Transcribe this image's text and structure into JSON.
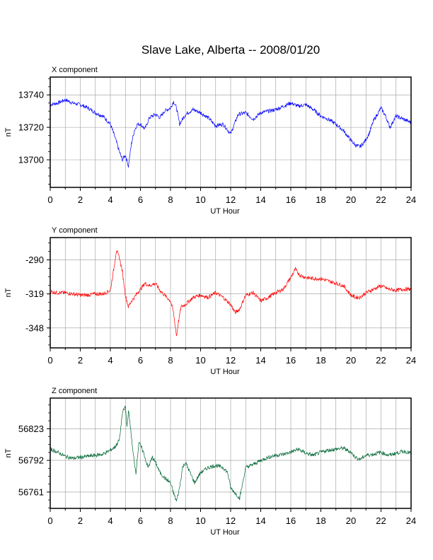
{
  "title": "Slave Lake, Alberta -- 2008/01/20",
  "chart_data": [
    {
      "type": "line",
      "title": "X component",
      "xlabel": "UT Hour",
      "ylabel": "nT",
      "xlim": [
        0,
        24
      ],
      "ylim": [
        13683,
        13751
      ],
      "x_ticks": [
        "0",
        "2",
        "4",
        "6",
        "8",
        "10",
        "12",
        "14",
        "16",
        "18",
        "20",
        "22",
        "24"
      ],
      "y_ticks": [
        13700,
        13720,
        13740
      ],
      "grid": true,
      "color": "#0000ff",
      "series": [
        {
          "x": [
            0,
            0.5,
            1,
            1.5,
            2,
            2.5,
            3,
            3.5,
            4,
            4.3,
            4.6,
            4.8,
            5,
            5.2,
            5.4,
            5.6,
            5.8,
            6,
            6.3,
            6.6,
            7,
            7.3,
            7.6,
            8,
            8.2,
            8.4,
            8.6,
            9,
            9.5,
            10,
            10.5,
            11,
            11.5,
            12,
            12.5,
            13,
            13.5,
            14,
            14.5,
            15,
            15.5,
            16,
            16.5,
            17,
            17.5,
            18,
            18.5,
            19,
            19.5,
            20,
            20.3,
            20.6,
            20.9,
            21.2,
            21.5,
            22,
            22.3,
            22.6,
            23,
            23.5,
            24
          ],
          "values": [
            13734,
            13735,
            13737,
            13735,
            13734,
            13732,
            13729,
            13727,
            13722,
            13714,
            13705,
            13700,
            13703,
            13696,
            13710,
            13718,
            13722,
            13722,
            13719,
            13726,
            13728,
            13726,
            13730,
            13732,
            13736,
            13732,
            13722,
            13728,
            13731,
            13729,
            13726,
            13721,
            13722,
            13716,
            13728,
            13729,
            13725,
            13729,
            13730,
            13731,
            13733,
            13735,
            13733,
            13734,
            13731,
            13727,
            13725,
            13722,
            13718,
            13712,
            13709,
            13708,
            13711,
            13716,
            13724,
            13732,
            13727,
            13720,
            13727,
            13725,
            13723
          ]
        }
      ]
    },
    {
      "type": "line",
      "title": "Y component",
      "xlabel": "UT Hour",
      "ylabel": "nT",
      "xlim": [
        0,
        24
      ],
      "ylim": [
        -365,
        -271
      ],
      "x_ticks": [
        "0",
        "2",
        "4",
        "6",
        "8",
        "10",
        "12",
        "14",
        "16",
        "18",
        "20",
        "22",
        "24"
      ],
      "y_ticks": [
        -290,
        -319,
        -348
      ],
      "grid": true,
      "color": "#ff0000",
      "series": [
        {
          "x": [
            0,
            0.5,
            1,
            1.5,
            2,
            2.5,
            3,
            3.5,
            4,
            4.2,
            4.4,
            4.6,
            4.8,
            5,
            5.2,
            5.4,
            5.6,
            5.8,
            6,
            6.3,
            6.6,
            7,
            7.3,
            7.6,
            8,
            8.2,
            8.4,
            8.5,
            8.7,
            9,
            9.5,
            10,
            10.5,
            11,
            11.5,
            12,
            12.3,
            12.6,
            13,
            13.5,
            14,
            14.5,
            15,
            15.5,
            16,
            16.3,
            16.6,
            17,
            17.5,
            18,
            18.5,
            19,
            19.5,
            20,
            20.3,
            20.6,
            21,
            21.5,
            22,
            22.5,
            23,
            23.5,
            24
          ],
          "values": [
            -317,
            -318,
            -318,
            -319,
            -320,
            -320,
            -319,
            -319,
            -316,
            -300,
            -282,
            -288,
            -300,
            -320,
            -330,
            -325,
            -322,
            -318,
            -315,
            -310,
            -312,
            -310,
            -316,
            -320,
            -325,
            -335,
            -355,
            -345,
            -330,
            -328,
            -322,
            -320,
            -322,
            -318,
            -322,
            -328,
            -335,
            -332,
            -320,
            -318,
            -325,
            -322,
            -318,
            -315,
            -305,
            -298,
            -303,
            -305,
            -306,
            -306,
            -308,
            -310,
            -312,
            -320,
            -322,
            -322,
            -318,
            -315,
            -312,
            -315,
            -316,
            -315,
            -315
          ]
        }
      ]
    },
    {
      "type": "line",
      "title": "Z component",
      "xlabel": "UT Hour",
      "ylabel": "nT",
      "xlim": [
        0,
        24
      ],
      "ylim": [
        56745,
        56853
      ],
      "x_ticks": [
        "0",
        "2",
        "4",
        "6",
        "8",
        "10",
        "12",
        "14",
        "16",
        "18",
        "20",
        "22",
        "24"
      ],
      "y_ticks": [
        56761,
        56792,
        56823
      ],
      "grid": true,
      "color": "#006633",
      "series": [
        {
          "x": [
            0,
            0.5,
            1,
            1.5,
            2,
            2.5,
            3,
            3.5,
            4,
            4.3,
            4.6,
            4.8,
            5,
            5.1,
            5.2,
            5.3,
            5.5,
            5.7,
            5.9,
            6.2,
            6.5,
            6.8,
            7,
            7.3,
            7.6,
            8,
            8.2,
            8.4,
            8.6,
            8.8,
            9,
            9.3,
            9.6,
            10,
            10.5,
            11,
            11.5,
            11.8,
            12,
            12.3,
            12.6,
            13,
            13.5,
            14,
            14.5,
            15,
            15.5,
            16,
            16.5,
            17,
            17.5,
            18,
            18.5,
            19,
            19.5,
            20,
            20.3,
            20.6,
            21,
            21.5,
            22,
            22.5,
            23,
            23.5,
            24
          ],
          "values": [
            56803,
            56800,
            56796,
            56794,
            56795,
            56796,
            56797,
            56798,
            56802,
            56805,
            56812,
            56838,
            56845,
            56825,
            56840,
            56830,
            56800,
            56780,
            56810,
            56800,
            56785,
            56795,
            56790,
            56780,
            56775,
            56770,
            56760,
            56752,
            56765,
            56785,
            56790,
            56780,
            56770,
            56780,
            56785,
            56787,
            56785,
            56780,
            56765,
            56760,
            56755,
            56785,
            56788,
            56792,
            56795,
            56797,
            56798,
            56800,
            56803,
            56799,
            56797,
            56800,
            56802,
            56803,
            56804,
            56800,
            56795,
            56793,
            56797,
            56798,
            56800,
            56797,
            56799,
            56801,
            56799
          ]
        }
      ]
    }
  ]
}
